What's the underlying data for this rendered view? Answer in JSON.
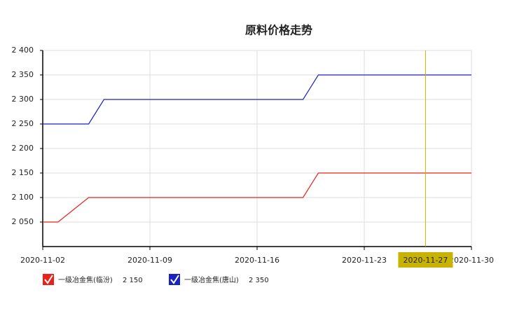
{
  "chart_data": {
    "type": "line",
    "title": "原料价格走势",
    "x": [
      "2020-11-02",
      "2020-11-03",
      "2020-11-05",
      "2020-11-06",
      "2020-11-19",
      "2020-11-20",
      "2020-11-30"
    ],
    "series": [
      {
        "name": "一级冶金焦(临汾)",
        "color": "#e8231b",
        "values": [
          2050,
          2050,
          2100,
          2100,
          2100,
          2150,
          2150
        ],
        "current": {
          "value": 2150,
          "label": "2 150"
        }
      },
      {
        "name": "一级冶金焦(唐山)",
        "color": "#1a22c4",
        "values": [
          2250,
          2250,
          2250,
          2300,
          2300,
          2350,
          2350
        ],
        "current": {
          "value": 2350,
          "label": "2 350"
        }
      }
    ],
    "xlim": [
      "2020-11-02",
      "2020-11-30"
    ],
    "xticks": [
      "2020-11-02",
      "2020-11-09",
      "2020-11-16",
      "2020-11-23",
      "2020-11-30"
    ],
    "ylim": [
      2000,
      2400
    ],
    "yticks": [
      {
        "value": 2050,
        "label": "2 050"
      },
      {
        "value": 2100,
        "label": "2 100"
      },
      {
        "value": 2150,
        "label": "2 150"
      },
      {
        "value": 2200,
        "label": "2 200"
      },
      {
        "value": 2250,
        "label": "2 250"
      },
      {
        "value": 2300,
        "label": "2 300"
      },
      {
        "value": 2350,
        "label": "2 350"
      },
      {
        "value": 2400,
        "label": "2 400"
      }
    ],
    "grid": true,
    "crosshair": {
      "x": "2020-11-27",
      "color": "#c8b400"
    }
  }
}
